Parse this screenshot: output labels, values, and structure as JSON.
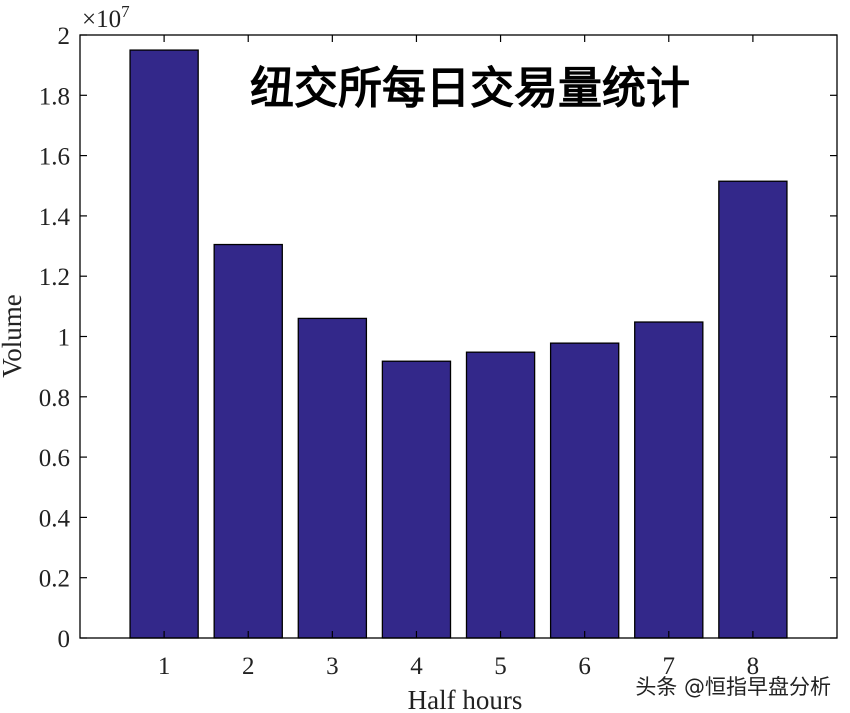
{
  "chart_data": {
    "type": "bar",
    "title": "纽交所每日交易量统计",
    "xlabel": "Half hours",
    "ylabel": "Volume",
    "y_multiplier": "×10",
    "y_multiplier_exp": "7",
    "categories": [
      "1",
      "2",
      "3",
      "4",
      "5",
      "6",
      "7",
      "8"
    ],
    "values": [
      1.95,
      1.305,
      1.06,
      0.918,
      0.948,
      0.978,
      1.048,
      1.515
    ],
    "ylim": [
      0,
      2
    ],
    "yticks": [
      "0",
      "0.2",
      "0.4",
      "0.6",
      "0.8",
      "1",
      "1.2",
      "1.4",
      "1.6",
      "1.8",
      "2"
    ],
    "grid": false,
    "legend": "none",
    "bar_color": "#33288a"
  },
  "watermark": {
    "text": "头条 @恒指早盘分析"
  }
}
